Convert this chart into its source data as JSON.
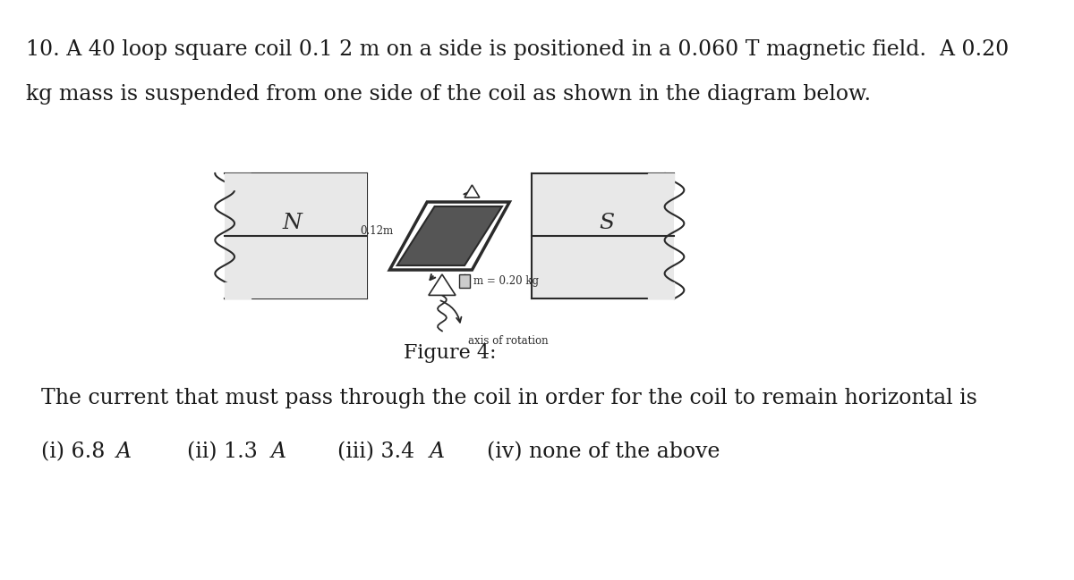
{
  "title_line1": "10. A 40 loop square coil 0.1 2 m on a side is positioned in a 0.060 T magnetic field.  A 0.20",
  "title_line2": "kg mass is suspended from one side of the coil as shown in the diagram below.",
  "figure_caption": "Figure 4:",
  "label_N": "N",
  "label_S": "S",
  "label_012m": "0.12m",
  "label_mass": "m = 0.20 kg",
  "label_axis": "axis of rotation",
  "answer_line": "(i) 6.8A     (ii) 1.3A     (iii) 3.4A     (iv) none of the above",
  "bg_color": "#ffffff",
  "text_color": "#1a1a1a",
  "diagram_color": "#2a2a2a",
  "magnet_fill": "#e8e8e8",
  "coil_fill": "#1a1a1a",
  "font_size_main": 17,
  "font_size_small": 10,
  "font_size_caption": 16,
  "font_size_answer": 17
}
